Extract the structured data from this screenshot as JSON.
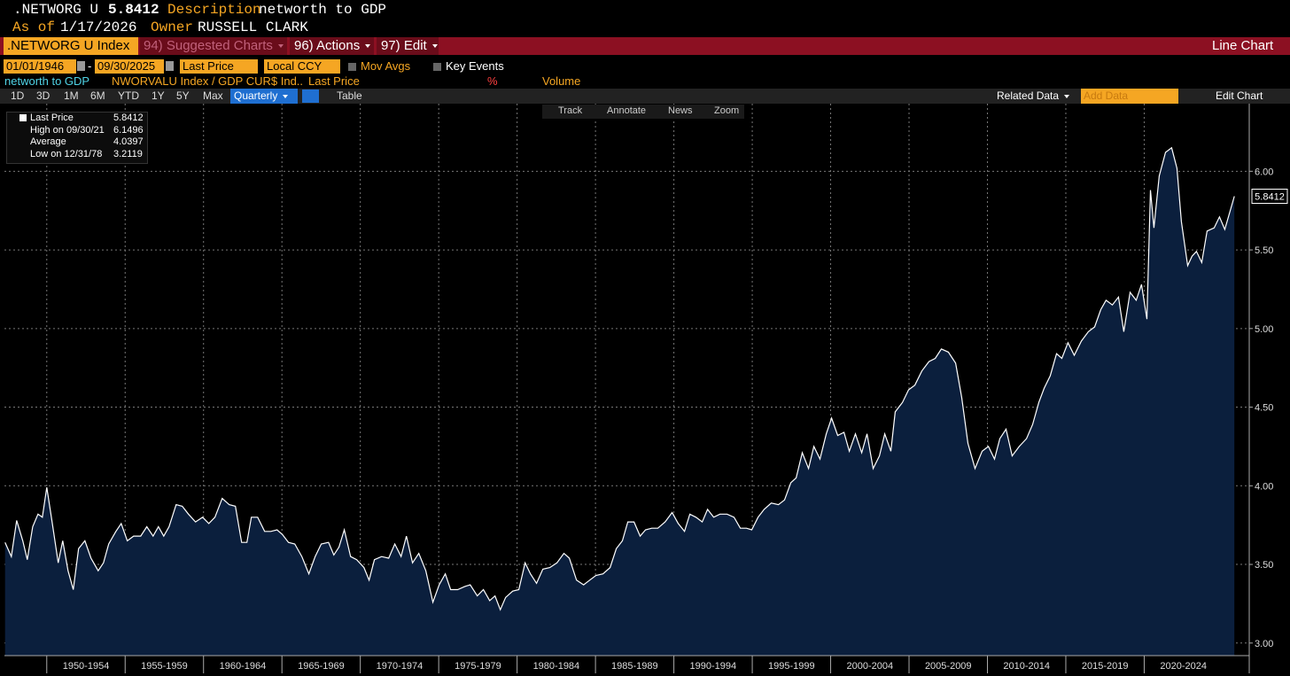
{
  "header": {
    "ticker": ".NETWORG U",
    "price": "5.8412",
    "description_label": "Description",
    "description": "networth to GDP",
    "as_of_label": "As of",
    "as_of": "1/17/2026",
    "owner_label": "Owner",
    "owner": "RUSSELL CLARK"
  },
  "toolbar": {
    "security": ".NETWORG U Index",
    "menus": [
      "94) Suggested Charts",
      "96) Actions",
      "97) Edit"
    ],
    "chart_kind": "Line Chart"
  },
  "controls": {
    "start_date": "01/01/1946",
    "separator": "-",
    "end_date": "09/30/2025",
    "field": "Last Price",
    "currency": "Local CCY",
    "mov_avgs": "Mov Avgs",
    "key_events": "Key Events"
  },
  "legend_row": {
    "security": "NWORVALU Index / GDP CUR$ Ind..",
    "field": "Last Price",
    "percent": "%",
    "volume": "Volume"
  },
  "periods": [
    "1D",
    "3D",
    "1M",
    "6M",
    "YTD",
    "1Y",
    "5Y",
    "Max"
  ],
  "frequency": "Quarterly",
  "table_button": "Table",
  "related_data": "Related Data",
  "add_data": "Add Data",
  "edit_chart": "Edit Chart",
  "chart_tools": [
    "Track",
    "Annotate",
    "News",
    "Zoom"
  ],
  "stats": [
    [
      "Last Price",
      "5.8412"
    ],
    [
      "High on 09/30/21",
      "6.1496"
    ],
    [
      "Average",
      "4.0397"
    ],
    [
      "Low on 12/31/78",
      "3.2119"
    ]
  ],
  "chart_data": {
    "type": "area",
    "x": [
      1947.34,
      1947.74,
      1948.08,
      1948.47,
      1948.76,
      1949.1,
      1949.44,
      1949.72,
      1950.0,
      1950.34,
      1950.73,
      1951.02,
      1951.36,
      1951.69,
      1952.03,
      1952.43,
      1952.82,
      1953.28,
      1953.62,
      1953.95,
      1954.41,
      1954.75,
      1955.14,
      1955.54,
      1955.99,
      1956.38,
      1956.78,
      1957.12,
      1957.46,
      1957.8,
      1958.25,
      1958.64,
      1959.04,
      1959.49,
      1959.94,
      1960.34,
      1960.73,
      1961.19,
      1961.64,
      1962.03,
      1962.43,
      1962.77,
      1963.05,
      1963.45,
      1963.9,
      1964.29,
      1964.69,
      1965.03,
      1965.42,
      1965.82,
      1966.27,
      1966.72,
      1967.12,
      1967.51,
      1967.97,
      1968.31,
      1968.64,
      1968.98,
      1969.38,
      1969.77,
      1970.23,
      1970.56,
      1970.9,
      1971.36,
      1971.81,
      1972.2,
      1972.6,
      1972.94,
      1973.33,
      1973.73,
      1974.18,
      1974.63,
      1975.03,
      1975.42,
      1975.76,
      1976.21,
      1976.67,
      1977.01,
      1977.46,
      1977.85,
      1978.25,
      1978.59,
      1978.93,
      1979.27,
      1979.72,
      1980.11,
      1980.51,
      1980.85,
      1981.24,
      1981.64,
      1982.09,
      1982.54,
      1982.99,
      1983.33,
      1983.79,
      1984.24,
      1984.63,
      1985.03,
      1985.48,
      1985.93,
      1986.33,
      1986.72,
      1987.06,
      1987.46,
      1987.85,
      1988.19,
      1988.59,
      1988.98,
      1989.44,
      1989.89,
      1990.28,
      1990.68,
      1991.02,
      1991.41,
      1991.81,
      1992.15,
      1992.54,
      1992.94,
      1993.39,
      1993.84,
      1994.24,
      1994.63,
      1994.97,
      1995.37,
      1995.76,
      1996.21,
      1996.67,
      1997.06,
      1997.46,
      1997.8,
      1998.19,
      1998.59,
      1998.93,
      1999.32,
      1999.72,
      2000.06,
      2000.45,
      2000.85,
      2001.19,
      2001.58,
      2001.98,
      2002.32,
      2002.71,
      2003.11,
      2003.45,
      2003.84,
      2004.12,
      2004.58,
      2004.97,
      2005.37,
      2005.82,
      2006.27,
      2006.67,
      2007.06,
      2007.51,
      2007.97,
      2008.36,
      2008.76,
      2009.21,
      2009.66,
      2010.06,
      2010.45,
      2010.79,
      2011.19,
      2011.58,
      2012.03,
      2012.49,
      2012.88,
      2013.28,
      2013.62,
      2014.01,
      2014.41,
      2014.75,
      2015.14,
      2015.54,
      2015.99,
      2016.44,
      2016.84,
      2017.23,
      2017.57,
      2017.97,
      2018.36,
      2018.7,
      2019.1,
      2019.49,
      2019.83,
      2020.17,
      2020.4,
      2020.62,
      2020.96,
      2021.36,
      2021.75,
      2022.09,
      2022.37,
      2022.77,
      2023.05,
      2023.33,
      2023.67,
      2024.01,
      2024.46,
      2024.8,
      2025.14,
      2025.75
    ],
    "series": [
      {
        "name": "networth to GDP",
        "color": "#ffffff",
        "fill": "#0b1f3d",
        "values": [
          3.64,
          3.55,
          3.78,
          3.65,
          3.53,
          3.74,
          3.82,
          3.8,
          3.99,
          3.77,
          3.51,
          3.65,
          3.46,
          3.34,
          3.6,
          3.65,
          3.54,
          3.46,
          3.51,
          3.63,
          3.71,
          3.76,
          3.65,
          3.68,
          3.68,
          3.74,
          3.68,
          3.74,
          3.68,
          3.74,
          3.88,
          3.87,
          3.82,
          3.77,
          3.8,
          3.76,
          3.8,
          3.92,
          3.88,
          3.87,
          3.64,
          3.64,
          3.8,
          3.8,
          3.71,
          3.71,
          3.72,
          3.69,
          3.64,
          3.63,
          3.55,
          3.44,
          3.55,
          3.63,
          3.64,
          3.56,
          3.61,
          3.72,
          3.55,
          3.53,
          3.48,
          3.4,
          3.53,
          3.55,
          3.54,
          3.63,
          3.55,
          3.68,
          3.51,
          3.57,
          3.46,
          3.26,
          3.37,
          3.44,
          3.34,
          3.34,
          3.36,
          3.37,
          3.3,
          3.34,
          3.27,
          3.3,
          3.2119,
          3.29,
          3.33,
          3.34,
          3.51,
          3.44,
          3.38,
          3.47,
          3.48,
          3.51,
          3.57,
          3.54,
          3.4,
          3.37,
          3.4,
          3.43,
          3.44,
          3.48,
          3.6,
          3.65,
          3.77,
          3.77,
          3.68,
          3.72,
          3.73,
          3.73,
          3.77,
          3.83,
          3.76,
          3.71,
          3.82,
          3.8,
          3.77,
          3.85,
          3.8,
          3.82,
          3.82,
          3.8,
          3.73,
          3.73,
          3.72,
          3.8,
          3.85,
          3.89,
          3.88,
          3.91,
          4.02,
          4.05,
          4.21,
          4.11,
          4.25,
          4.17,
          4.33,
          4.43,
          4.32,
          4.34,
          4.22,
          4.33,
          4.21,
          4.33,
          4.11,
          4.19,
          4.33,
          4.22,
          4.47,
          4.53,
          4.61,
          4.64,
          4.73,
          4.79,
          4.81,
          4.87,
          4.85,
          4.78,
          4.56,
          4.27,
          4.11,
          4.22,
          4.25,
          4.17,
          4.3,
          4.36,
          4.19,
          4.25,
          4.3,
          4.39,
          4.53,
          4.62,
          4.7,
          4.84,
          4.81,
          4.91,
          4.83,
          4.92,
          4.98,
          5.01,
          5.12,
          5.18,
          5.15,
          5.2,
          4.98,
          5.23,
          5.18,
          5.28,
          5.06,
          5.88,
          5.64,
          5.97,
          6.12,
          6.1496,
          6.02,
          5.68,
          5.4,
          5.46,
          5.49,
          5.42,
          5.62,
          5.64,
          5.71,
          5.63,
          5.8412
        ]
      }
    ],
    "xlim": [
      1947.3,
      2026.7
    ],
    "xticks": [
      {
        "value": 1950,
        "label": "1950-1954"
      },
      {
        "value": 1955,
        "label": "1955-1959"
      },
      {
        "value": 1960,
        "label": "1960-1964"
      },
      {
        "value": 1965,
        "label": "1965-1969"
      },
      {
        "value": 1970,
        "label": "1970-1974"
      },
      {
        "value": 1975,
        "label": "1975-1979"
      },
      {
        "value": 1980,
        "label": "1980-1984"
      },
      {
        "value": 1985,
        "label": "1985-1989"
      },
      {
        "value": 1990,
        "label": "1990-1994"
      },
      {
        "value": 1995,
        "label": "1995-1999"
      },
      {
        "value": 2000,
        "label": "2000-2004"
      },
      {
        "value": 2005,
        "label": "2005-2009"
      },
      {
        "value": 2010,
        "label": "2010-2014"
      },
      {
        "value": 2015,
        "label": "2015-2019"
      },
      {
        "value": 2020,
        "label": "2020-2024"
      }
    ],
    "ylim": [
      2.92,
      6.43
    ],
    "yticks": [
      {
        "value": 3,
        "label": "3.00"
      },
      {
        "value": 3.5,
        "label": "3.50"
      },
      {
        "value": 4,
        "label": "4.00"
      },
      {
        "value": 4.5,
        "label": "4.50"
      },
      {
        "value": 5,
        "label": "5.00"
      },
      {
        "value": 5.5,
        "label": "5.50"
      },
      {
        "value": 6,
        "label": "6.00"
      }
    ],
    "grid": true
  }
}
